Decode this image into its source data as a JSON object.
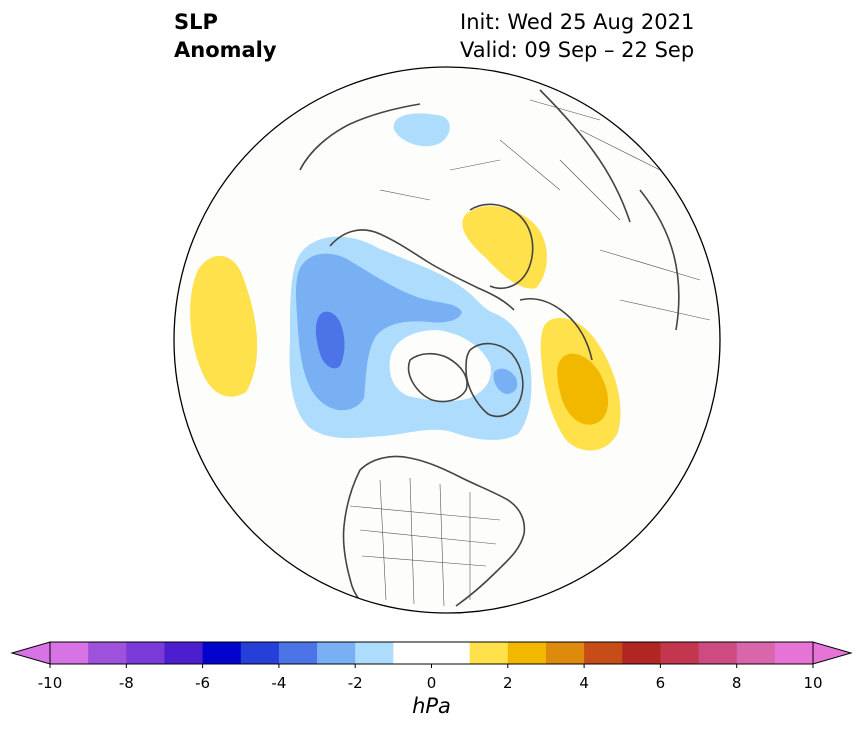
{
  "title": {
    "variable_line1": "SLP",
    "variable_line2": "Anomaly",
    "init": "Init: Wed 25 Aug 2021",
    "valid": "Valid: 09 Sep – 22 Sep"
  },
  "map": {
    "projection": "north-polar-stereographic",
    "region": "Northern Hemisphere",
    "features": [
      {
        "name": "positive-anomaly-north-pacific",
        "level": 1
      },
      {
        "name": "positive-anomaly-scandinavia",
        "level": 1
      },
      {
        "name": "positive-anomaly-central-asia",
        "level": 2
      },
      {
        "name": "negative-anomaly-north-atlantic-greenland",
        "level": -2
      },
      {
        "name": "negative-anomaly-north-atlantic-core",
        "level": -3
      },
      {
        "name": "negative-anomaly-kara-sea",
        "level": -1
      }
    ]
  },
  "colorbar": {
    "units": "hPa",
    "ticks": [
      "-10",
      "-8",
      "-6",
      "-4",
      "-2",
      "0",
      "2",
      "4",
      "6",
      "8",
      "10"
    ],
    "tick_values": [
      -10,
      -8,
      -6,
      -4,
      -2,
      0,
      2,
      4,
      6,
      8,
      10
    ],
    "extend": "both",
    "colors": [
      "#d873e6",
      "#9e52dc",
      "#7a3ad8",
      "#4b1fd0",
      "#0202cd",
      "#263fd9",
      "#4c74e6",
      "#79b0f4",
      "#aedcfc",
      "#ffffff",
      "#ffffff",
      "#ffe14c",
      "#f2b800",
      "#de8a0c",
      "#c74d18",
      "#b12523",
      "#c2364e",
      "#cd4b80",
      "#d966aa",
      "#e674d6"
    ]
  }
}
